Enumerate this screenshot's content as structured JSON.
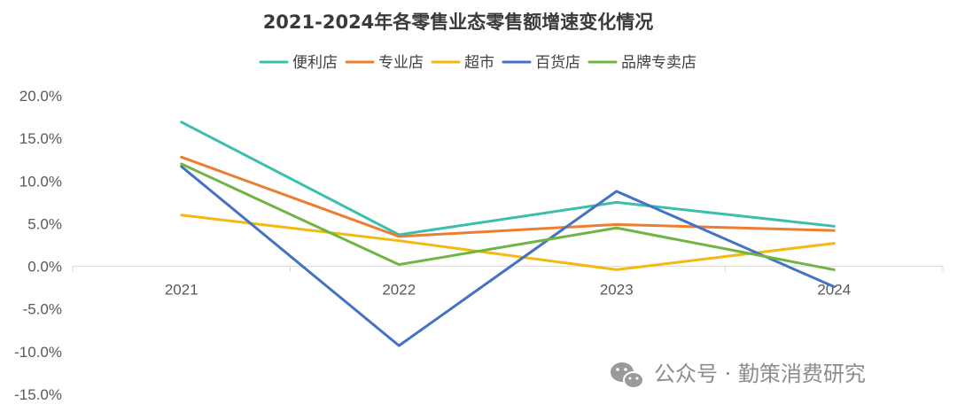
{
  "chart_data": {
    "type": "line",
    "title": "2021-2024年各零售业态零售额增速变化情况",
    "categories": [
      "2021",
      "2022",
      "2023",
      "2024"
    ],
    "series": [
      {
        "name": "便利店",
        "color": "#3BBFAD",
        "values": [
          16.9,
          3.7,
          7.5,
          4.7
        ]
      },
      {
        "name": "专业店",
        "color": "#ED7D31",
        "values": [
          12.8,
          3.5,
          4.9,
          4.2
        ]
      },
      {
        "name": "超市",
        "color": "#F2B90F",
        "values": [
          6.0,
          3.0,
          -0.4,
          2.7
        ]
      },
      {
        "name": "百货店",
        "color": "#4472C4",
        "values": [
          11.7,
          -9.3,
          8.8,
          -2.4
        ]
      },
      {
        "name": "品牌专卖店",
        "color": "#70B543",
        "values": [
          12.0,
          0.2,
          4.5,
          -0.4
        ]
      }
    ],
    "ylim": [
      -15,
      20
    ],
    "y_ticks": [
      "20.0%",
      "15.0%",
      "10.0%",
      "5.0%",
      "0.0%",
      "-5.0%",
      "-10.0%",
      "-15.0%"
    ],
    "legend_position": "top",
    "grid": false
  },
  "watermark": {
    "icon": "wechat-icon",
    "text": "公众号 · 勤策消费研究"
  }
}
